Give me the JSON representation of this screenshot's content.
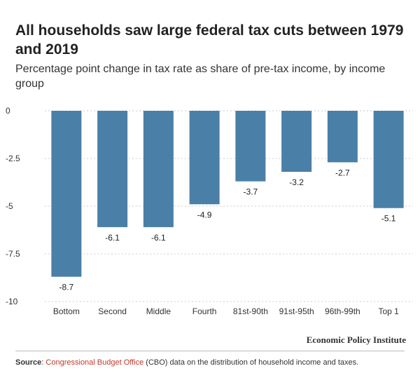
{
  "header": {
    "title": "All households saw large federal tax cuts between 1979 and 2019",
    "subtitle": "Percentage point change in tax rate as share of pre-tax income, by income group"
  },
  "footer": {
    "brand": "Economic Policy Institute",
    "source_label": "Source",
    "source_link": "Congressional Budget Office",
    "source_rest": " (CBO) data on the distribution of household income and taxes."
  },
  "colors": {
    "bar": "#4a7fa7",
    "grid": "#cccccc",
    "link": "#c0392b"
  },
  "chart_data": {
    "type": "bar",
    "categories": [
      "Bottom",
      "Second",
      "Middle",
      "Fourth",
      "81st-90th",
      "91st-95th",
      "96th-99th",
      "Top 1"
    ],
    "values": [
      -8.7,
      -6.1,
      -6.1,
      -4.9,
      -3.7,
      -3.2,
      -2.7,
      -5.1
    ],
    "value_labels": [
      "-8.7",
      "-6.1",
      "-6.1",
      "-4.9",
      "-3.7",
      "-3.2",
      "-2.7",
      "-5.1"
    ],
    "yticks": [
      0,
      -2.5,
      -5,
      -7.5,
      -10
    ],
    "ytick_labels": [
      "0",
      "-2.5",
      "-5",
      "-7.5",
      "-10"
    ],
    "ylim": [
      -10,
      0
    ],
    "grid": true,
    "legend": "none"
  }
}
